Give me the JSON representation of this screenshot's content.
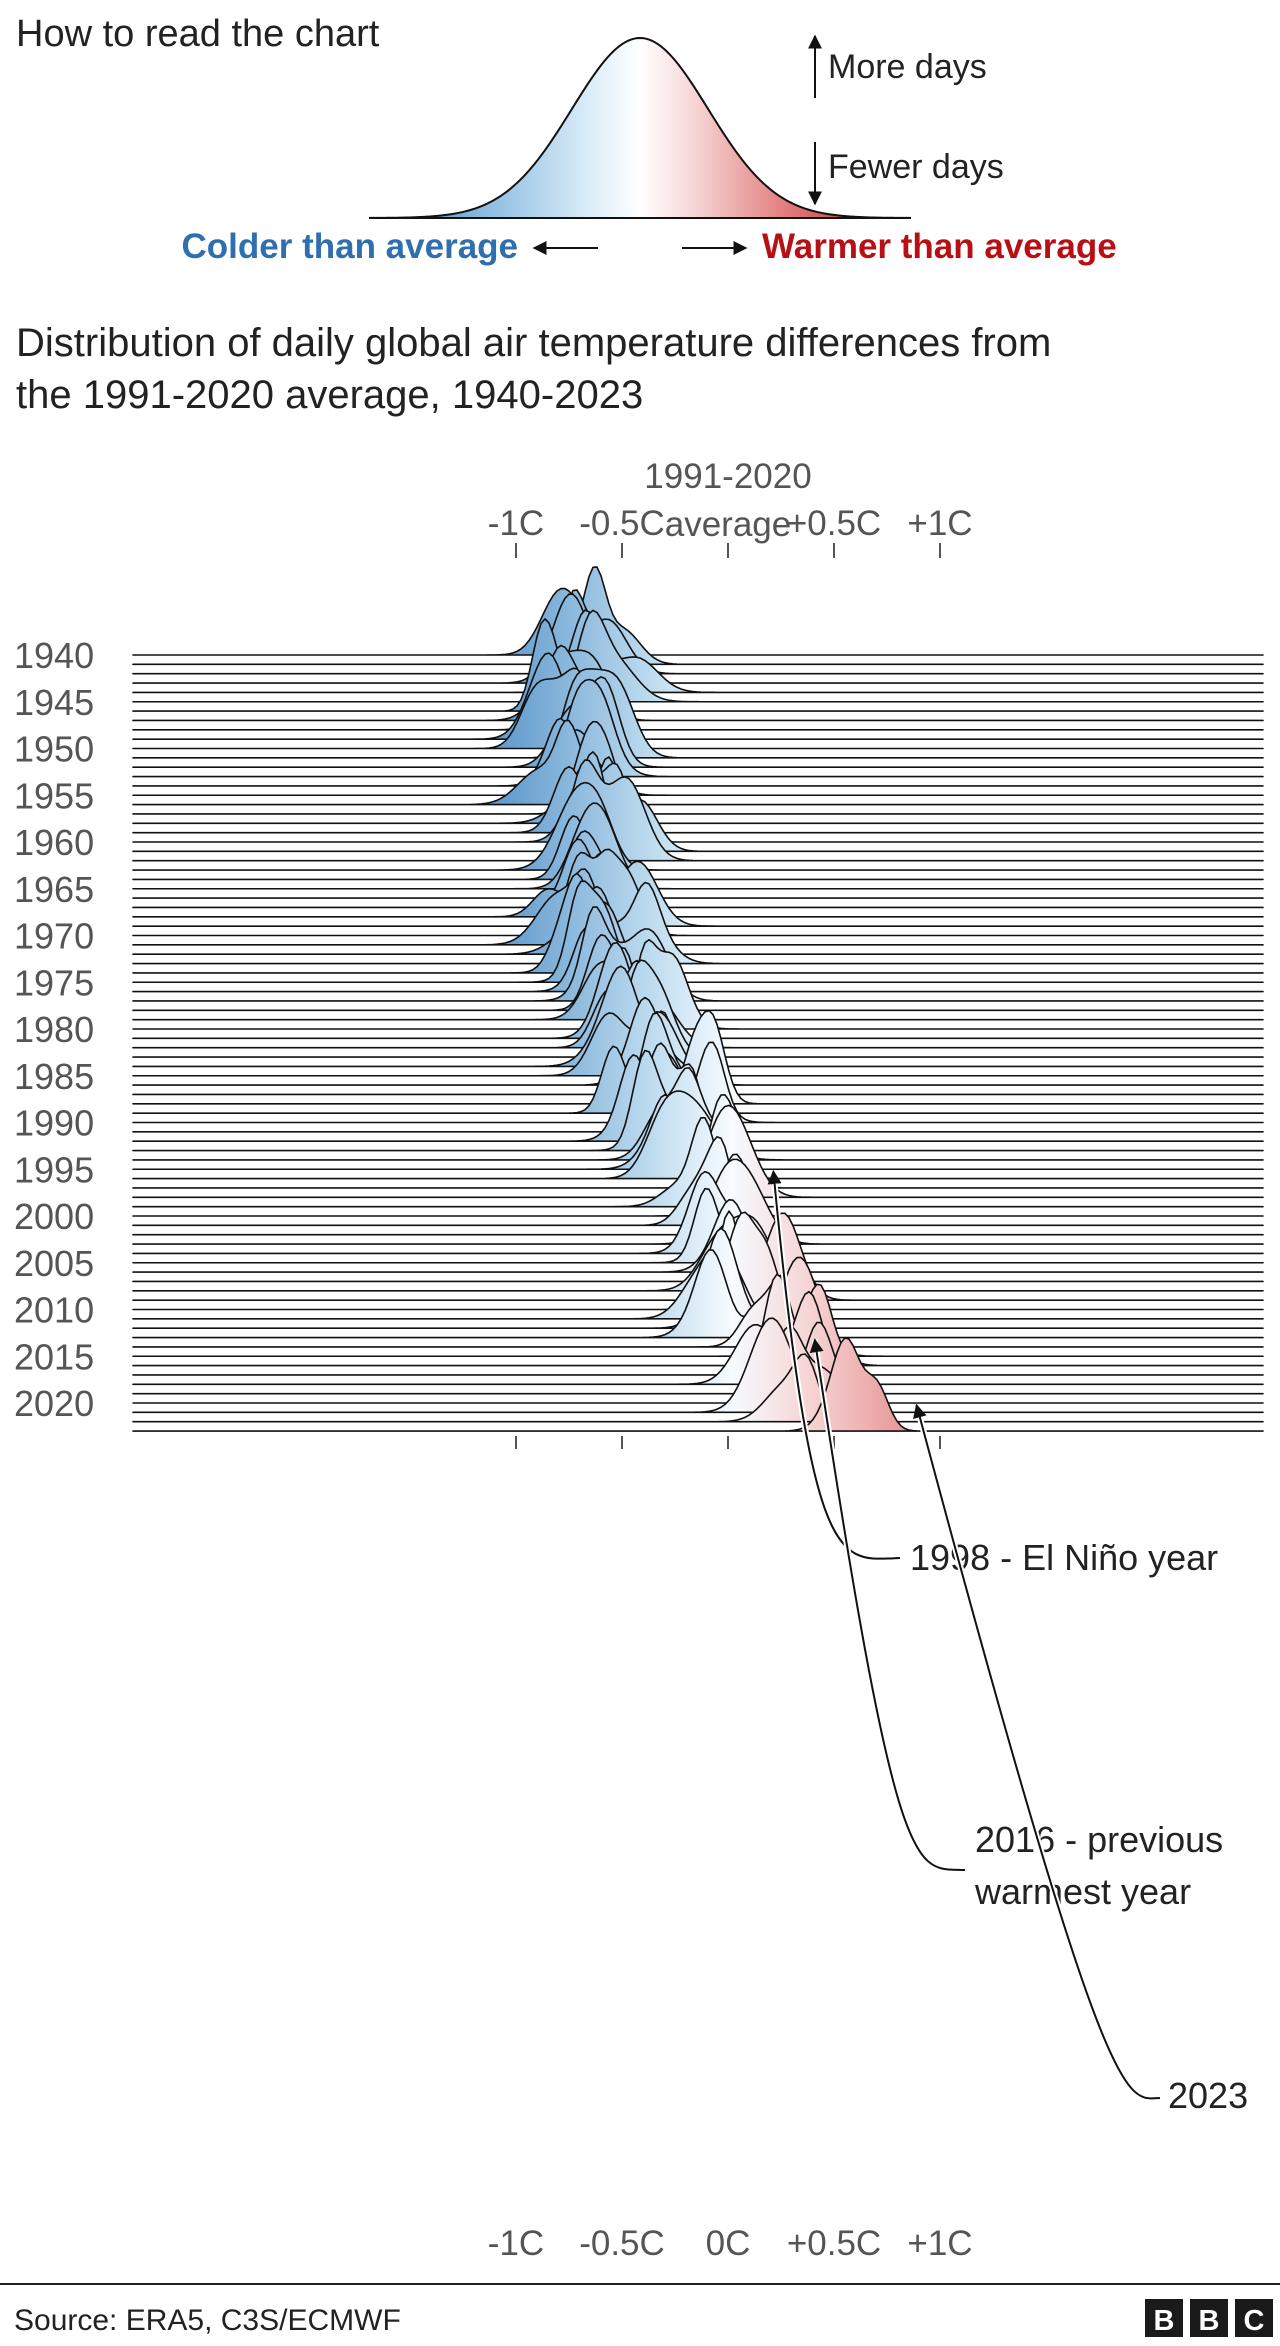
{
  "legend": {
    "title": "How to read the chart",
    "more_days": "More days",
    "fewer_days": "Fewer days",
    "colder": "Colder than average",
    "warmer": "Warmer than average",
    "colder_color": "#2f6fae",
    "warmer_color": "#b80f14"
  },
  "chart_data": {
    "type": "ridgeline",
    "title": "Distribution of daily global air temperature differences from the 1991-2020 average, 1940-2023",
    "title_lines": [
      "Distribution of daily global air temperature differences from",
      "the 1991-2020 average, 1940-2023"
    ],
    "x_range": [
      -1.4,
      1.25
    ],
    "x_unit": "C",
    "top_ticks": [
      {
        "value": -1.0,
        "label": "-1C"
      },
      {
        "value": -0.5,
        "label": "-0.5C"
      },
      {
        "value": 0.5,
        "label": "+0.5C"
      },
      {
        "value": 1.0,
        "label": "+1C"
      }
    ],
    "top_center_label": [
      "1991-2020",
      "average"
    ],
    "bottom_ticks": [
      {
        "value": -1.0,
        "label": "-1C"
      },
      {
        "value": -0.5,
        "label": "-0.5C"
      },
      {
        "value": 0.0,
        "label": "0C"
      },
      {
        "value": 0.5,
        "label": "+0.5C"
      },
      {
        "value": 1.0,
        "label": "+1C"
      }
    ],
    "year_start": 1940,
    "year_end": 2023,
    "year_labels": [
      1940,
      1945,
      1950,
      1955,
      1960,
      1965,
      1970,
      1975,
      1980,
      1985,
      1990,
      1995,
      2000,
      2005,
      2010,
      2015,
      2020
    ],
    "color_scale": {
      "cold": "#08365e",
      "mid": "#f7fbff",
      "warm": "#5a0000"
    },
    "yearly_mean_anomaly": [
      -0.7,
      -0.58,
      -0.62,
      -0.6,
      -0.56,
      -0.68,
      -0.72,
      -0.66,
      -0.7,
      -0.72,
      -0.8,
      -0.66,
      -0.65,
      -0.58,
      -0.7,
      -0.75,
      -0.8,
      -0.62,
      -0.6,
      -0.62,
      -0.6,
      -0.55,
      -0.58,
      -0.58,
      -0.74,
      -0.72,
      -0.65,
      -0.64,
      -0.7,
      -0.56,
      -0.6,
      -0.7,
      -0.62,
      -0.5,
      -0.7,
      -0.72,
      -0.76,
      -0.52,
      -0.55,
      -0.48,
      -0.4,
      -0.38,
      -0.48,
      -0.35,
      -0.45,
      -0.44,
      -0.36,
      -0.26,
      -0.2,
      -0.38,
      -0.2,
      -0.22,
      -0.36,
      -0.32,
      -0.26,
      -0.16,
      -0.24,
      -0.1,
      0.1,
      -0.22,
      -0.18,
      -0.14,
      -0.04,
      0.0,
      0.02,
      -0.08,
      0.06,
      0.02,
      -0.02,
      0.12,
      0.06,
      -0.04,
      0.02,
      0.05,
      0.14,
      0.32,
      0.38,
      0.3,
      0.28,
      0.42,
      0.38,
      0.24,
      0.28,
      0.62
    ],
    "annotations": [
      {
        "label": "1998 - El Niño year",
        "year": 1998,
        "value": 0.2
      },
      {
        "label_lines": [
          "2016 - previous",
          "warmest year"
        ],
        "year": 2016,
        "value": 0.4
      },
      {
        "label": "2023",
        "year": 2023,
        "value": 0.88
      }
    ]
  },
  "footer": {
    "source": "Source: ERA5, C3S/ECMWF",
    "logo_letters": [
      "B",
      "B",
      "C"
    ]
  }
}
